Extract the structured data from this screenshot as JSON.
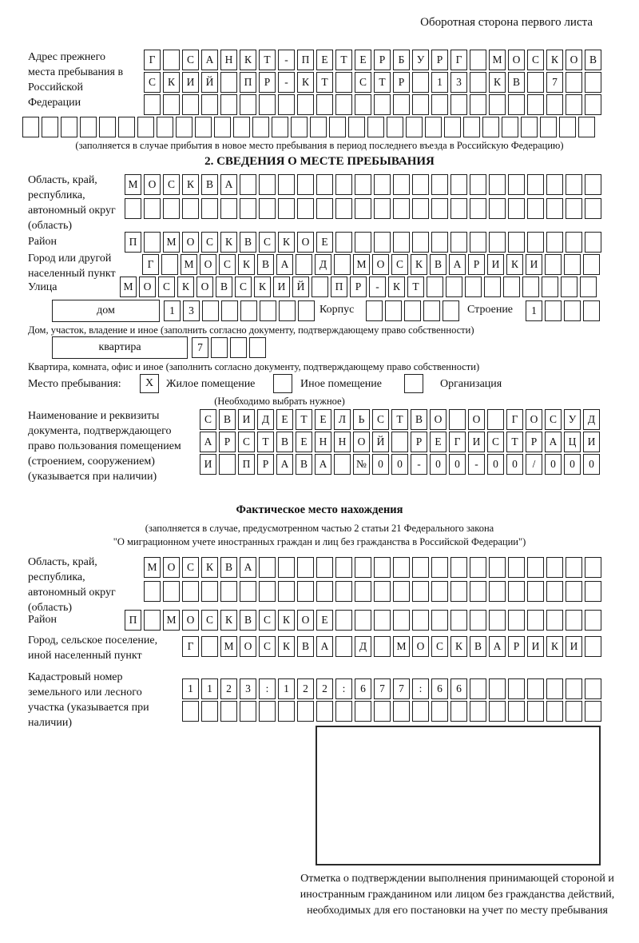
{
  "page_title": "Оборотная сторона первого листа",
  "prev_address": {
    "label": "Адрес прежнего места пребывания в Российской Федерации",
    "rows": [
      {
        "len": 24,
        "text": "Г САНКТ-ПЕТЕРБУРГ МОСКОВ"
      },
      {
        "len": 24,
        "text": "СКИЙ ПР-КТ СТР 13 КВ 7"
      },
      {
        "len": 24,
        "text": ""
      },
      {
        "len": 30,
        "text": ""
      }
    ],
    "note": "(заполняется в случае прибытия в новое место пребывания в период последнего въезда в Российскую Федерацию)"
  },
  "section2": {
    "heading": "2. СВЕДЕНИЯ О МЕСТЕ ПРЕБЫВАНИЯ",
    "oblast": {
      "label": "Область, край, республика, автономный округ (область)",
      "rows": [
        {
          "len": 25,
          "text": "МОСКВА"
        },
        {
          "len": 25,
          "text": ""
        }
      ]
    },
    "raion": {
      "label": "Район",
      "row": {
        "len": 25,
        "text": "П МОСКВСКОЕ"
      }
    },
    "gorod": {
      "label": "Город или другой населенный пункт",
      "row": {
        "len": 24,
        "text": "Г МОСКВА Д МОСКВАРИКИ"
      }
    },
    "ulitsa": {
      "label": "Улица",
      "row": {
        "len": 25,
        "text": "МОСКОВСКИЙ ПР-КТ"
      }
    },
    "dom": {
      "label": "дом",
      "cells": {
        "len": 8,
        "text": "13"
      },
      "korpus_label": "Корпус",
      "korpus_cells": {
        "len": 5,
        "text": ""
      },
      "stroenie_label": "Строение",
      "stroenie_cells": {
        "len": 4,
        "text": "1"
      }
    },
    "dom_note": "Дом, участок, владение и иное (заполнить согласно документу, подтверждающему право собственности)",
    "kvartira": {
      "label": "квартира",
      "cells": {
        "len": 4,
        "text": "7"
      }
    },
    "kvartira_note": "Квартира, комната, офис и иное (заполнить согласно документу, подтверждающему право собственности)",
    "mesto": {
      "label": "Место пребывания:",
      "options": [
        {
          "mark": "X",
          "label": "Жилое помещение"
        },
        {
          "mark": "",
          "label": "Иное помещение"
        },
        {
          "mark": "",
          "label": "Организация"
        }
      ],
      "note": "(Необходимо выбрать нужное)"
    },
    "document": {
      "label": "Наименование и реквизиты документа, подтверждающего право пользования помещением (строением, сооружением) (указывается при наличии)",
      "rows": [
        {
          "len": 21,
          "text": "СВИДЕТЕЛЬСТВО О ГОСУД"
        },
        {
          "len": 21,
          "text": "АРСТВЕННОЙ РЕГИСТРАЦИ"
        },
        {
          "len": 21,
          "text": "И ПРАВА №00-00-00/000"
        }
      ]
    }
  },
  "fact": {
    "heading": "Фактическое место нахождения",
    "note1": "(заполняется в случае, предусмотренном частью 2 статьи 21 Федерального закона",
    "note2": "\"О миграционном учете иностранных граждан и лиц без гражданства в Российской Федерации\")",
    "oblast": {
      "label": "Область, край, республика, автономный округ (область)",
      "rows": [
        {
          "len": 24,
          "text": "МОСКВА"
        },
        {
          "len": 24,
          "text": ""
        }
      ]
    },
    "raion": {
      "label": "Район",
      "row": {
        "len": 25,
        "text": "П МОСКВСКОЕ"
      }
    },
    "gorod": {
      "label": "Город, сельское поселение, иной населенный пункт",
      "row": {
        "len": 22,
        "text": "Г МОСКВА Д МОСКВАРИКИ"
      }
    },
    "kadastr": {
      "label": "Кадастровый номер земельного или лесного участка (указывается при наличии)",
      "rows": [
        {
          "len": 22,
          "text": "1123:122:677:66"
        },
        {
          "len": 22,
          "text": ""
        }
      ]
    }
  },
  "stamp": {
    "caption": "Отметка о подтверждении выполнения принимающей стороной и иностранным гражданином или лицом без гражданства действий, необходимых для его постановки на учет по месту пребывания"
  }
}
